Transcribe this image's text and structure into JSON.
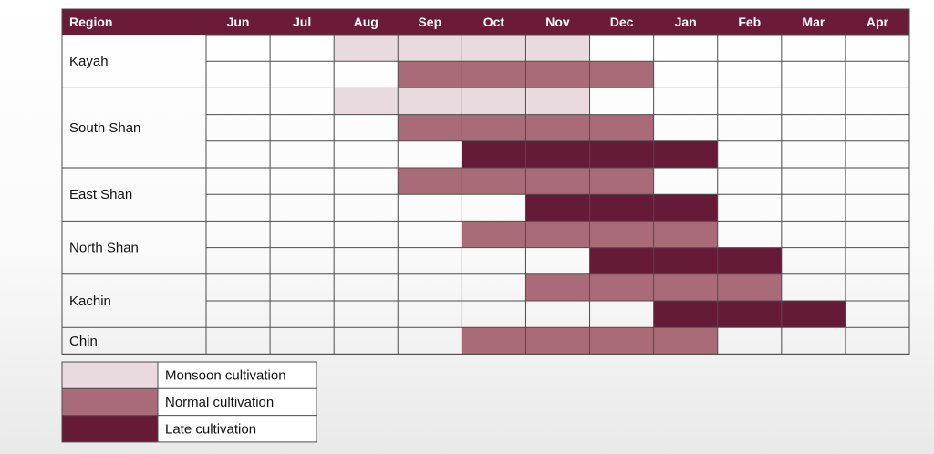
{
  "chart_data": {
    "type": "table",
    "header": {
      "region_label": "Region",
      "months": [
        "Jun",
        "Jul",
        "Aug",
        "Sep",
        "Oct",
        "Nov",
        "Dec",
        "Jan",
        "Feb",
        "Mar",
        "Apr"
      ]
    },
    "regions": [
      {
        "name": "Kayah",
        "rows": [
          {
            "type": "monsoon",
            "months": [
              "Aug",
              "Sep",
              "Oct",
              "Nov"
            ]
          },
          {
            "type": "normal",
            "months": [
              "Sep",
              "Oct",
              "Nov",
              "Dec"
            ]
          }
        ]
      },
      {
        "name": "South Shan",
        "rows": [
          {
            "type": "monsoon",
            "months": [
              "Aug",
              "Sep",
              "Oct",
              "Nov"
            ]
          },
          {
            "type": "normal",
            "months": [
              "Sep",
              "Oct",
              "Nov",
              "Dec"
            ]
          },
          {
            "type": "late",
            "months": [
              "Oct",
              "Nov",
              "Dec",
              "Jan"
            ]
          }
        ]
      },
      {
        "name": "East Shan",
        "rows": [
          {
            "type": "normal",
            "months": [
              "Sep",
              "Oct",
              "Nov",
              "Dec"
            ]
          },
          {
            "type": "late",
            "months": [
              "Nov",
              "Dec",
              "Jan"
            ]
          }
        ]
      },
      {
        "name": "North Shan",
        "rows": [
          {
            "type": "normal",
            "months": [
              "Oct",
              "Nov",
              "Dec",
              "Jan"
            ]
          },
          {
            "type": "late",
            "months": [
              "Dec",
              "Jan",
              "Feb"
            ]
          }
        ]
      },
      {
        "name": "Kachin",
        "rows": [
          {
            "type": "normal",
            "months": [
              "Nov",
              "Dec",
              "Jan",
              "Feb"
            ]
          },
          {
            "type": "late",
            "months": [
              "Jan",
              "Feb",
              "Mar"
            ]
          }
        ]
      },
      {
        "name": "Chin",
        "rows": [
          {
            "type": "normal",
            "months": [
              "Oct",
              "Nov",
              "Dec",
              "Jan"
            ]
          }
        ]
      }
    ],
    "legend": [
      {
        "key": "monsoon",
        "label": "Monsoon cultivation"
      },
      {
        "key": "normal",
        "label": "Normal cultivation"
      },
      {
        "key": "late",
        "label": "Late cultivation"
      }
    ],
    "colors": {
      "header": "#6b1b38",
      "monsoon": "#e8dadf",
      "normal": "#a96b78",
      "late": "#651b38",
      "grid": "#4d4d4d"
    }
  }
}
